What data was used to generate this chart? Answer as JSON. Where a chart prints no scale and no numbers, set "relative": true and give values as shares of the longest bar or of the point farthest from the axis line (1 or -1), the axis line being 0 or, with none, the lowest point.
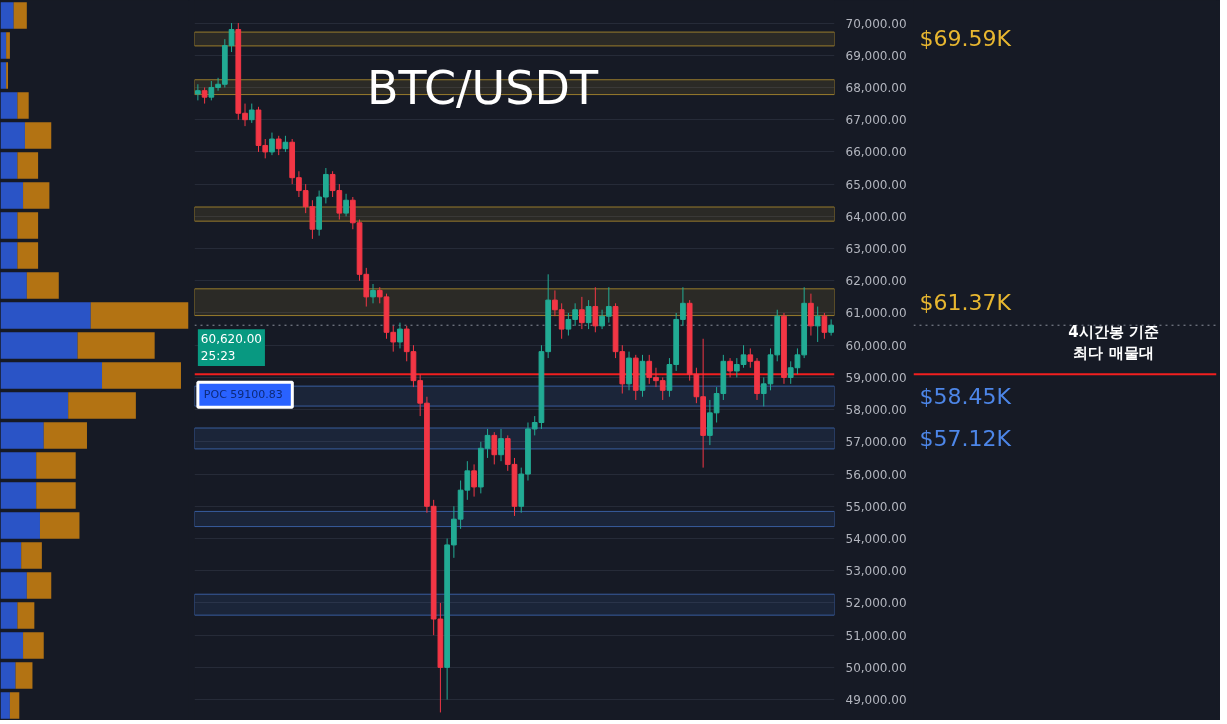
{
  "chart_data": [
    {
      "type": "candlestick",
      "title": "BTC/USDT",
      "categories": [
        null,
        null,
        null,
        null,
        null,
        null,
        null,
        null,
        null,
        null,
        null,
        null,
        null,
        null,
        null,
        null,
        null,
        null,
        null,
        null,
        null,
        null,
        null,
        null,
        null,
        null,
        null,
        null,
        null,
        null,
        null,
        null,
        null,
        null,
        null,
        null,
        null,
        null,
        null,
        null,
        null,
        null,
        null,
        null,
        null,
        null,
        null,
        null,
        null,
        null,
        null,
        null,
        null,
        null,
        null,
        null,
        null,
        null,
        null,
        null,
        null,
        null,
        null,
        null,
        null,
        null,
        null,
        null,
        null,
        null,
        null,
        null,
        null,
        null,
        null,
        null,
        null,
        null,
        null,
        null,
        null,
        null,
        null,
        null,
        null,
        null,
        null,
        null,
        null,
        null,
        null,
        null,
        null,
        null,
        null
      ],
      "ohlc": [
        [
          67800,
          68100,
          67600,
          67900
        ],
        [
          67900,
          68000,
          67500,
          67700
        ],
        [
          67700,
          68200,
          67600,
          68000
        ],
        [
          68000,
          68300,
          67900,
          68100
        ],
        [
          68100,
          69500,
          68000,
          69300
        ],
        [
          69300,
          70000,
          69100,
          69800
        ],
        [
          69800,
          70000,
          67000,
          67200
        ],
        [
          67200,
          67500,
          66800,
          67000
        ],
        [
          67000,
          67500,
          66900,
          67300
        ],
        [
          67300,
          67400,
          66000,
          66200
        ],
        [
          66200,
          66400,
          65800,
          66000
        ],
        [
          66000,
          66600,
          65900,
          66400
        ],
        [
          66400,
          66500,
          65900,
          66100
        ],
        [
          66100,
          66500,
          66000,
          66300
        ],
        [
          66300,
          66400,
          65000,
          65200
        ],
        [
          65200,
          65400,
          64600,
          64800
        ],
        [
          64800,
          65000,
          64100,
          64300
        ],
        [
          64300,
          64500,
          63300,
          63600
        ],
        [
          63600,
          64800,
          63400,
          64600
        ],
        [
          64600,
          65500,
          64400,
          65300
        ],
        [
          65300,
          65400,
          64600,
          64800
        ],
        [
          64800,
          65000,
          63900,
          64100
        ],
        [
          64100,
          64700,
          64000,
          64500
        ],
        [
          64500,
          64600,
          63600,
          63800
        ],
        [
          63800,
          63900,
          62000,
          62200
        ],
        [
          62200,
          62400,
          61200,
          61500
        ],
        [
          61500,
          61900,
          61300,
          61700
        ],
        [
          61700,
          61800,
          61300,
          61500
        ],
        [
          61500,
          61600,
          60200,
          60400
        ],
        [
          60400,
          60600,
          59800,
          60100
        ],
        [
          60100,
          60700,
          59900,
          60500
        ],
        [
          60500,
          60600,
          59500,
          59800
        ],
        [
          59800,
          60000,
          58700,
          58900
        ],
        [
          58900,
          59100,
          57800,
          58200
        ],
        [
          58200,
          58400,
          54800,
          55000
        ],
        [
          55000,
          55200,
          51000,
          51500
        ],
        [
          51500,
          52000,
          48600,
          50000
        ],
        [
          50000,
          54000,
          49000,
          53800
        ],
        [
          53800,
          55000,
          53400,
          54600
        ],
        [
          54600,
          55800,
          54300,
          55500
        ],
        [
          55500,
          56400,
          55200,
          56100
        ],
        [
          56100,
          56300,
          55300,
          55600
        ],
        [
          55600,
          57000,
          55400,
          56800
        ],
        [
          56800,
          57400,
          56500,
          57200
        ],
        [
          57200,
          57300,
          56300,
          56600
        ],
        [
          56600,
          57400,
          56400,
          57100
        ],
        [
          57100,
          57200,
          56100,
          56300
        ],
        [
          56300,
          56500,
          54700,
          55000
        ],
        [
          55000,
          56200,
          54800,
          56000
        ],
        [
          56000,
          57600,
          55800,
          57400
        ],
        [
          57400,
          57800,
          57200,
          57600
        ],
        [
          57600,
          60000,
          57400,
          59800
        ],
        [
          59800,
          62200,
          59600,
          61400
        ],
        [
          61400,
          61700,
          60900,
          61100
        ],
        [
          61100,
          61300,
          60200,
          60500
        ],
        [
          60500,
          61000,
          60300,
          60800
        ],
        [
          60800,
          61300,
          60600,
          61100
        ],
        [
          61100,
          61500,
          60500,
          60700
        ],
        [
          60700,
          61400,
          60500,
          61200
        ],
        [
          61200,
          61800,
          60400,
          60600
        ],
        [
          60600,
          61100,
          60500,
          60900
        ],
        [
          60900,
          61800,
          60700,
          61200
        ],
        [
          61200,
          61300,
          59600,
          59800
        ],
        [
          59800,
          60000,
          58500,
          58800
        ],
        [
          58800,
          59800,
          58600,
          59600
        ],
        [
          59600,
          59700,
          58300,
          58600
        ],
        [
          58600,
          59700,
          58400,
          59500
        ],
        [
          59500,
          59700,
          58800,
          59000
        ],
        [
          59000,
          59300,
          58700,
          58900
        ],
        [
          58900,
          59000,
          58300,
          58600
        ],
        [
          58600,
          59600,
          58400,
          59400
        ],
        [
          59400,
          61000,
          59200,
          60800
        ],
        [
          60800,
          61800,
          60600,
          61300
        ],
        [
          61300,
          61400,
          58900,
          59100
        ],
        [
          59100,
          59300,
          58200,
          58400
        ],
        [
          58400,
          60200,
          56200,
          57200
        ],
        [
          57200,
          58300,
          56900,
          57900
        ],
        [
          57900,
          58700,
          57600,
          58500
        ],
        [
          58500,
          59700,
          58300,
          59500
        ],
        [
          59500,
          59600,
          59000,
          59200
        ],
        [
          59200,
          59600,
          59000,
          59400
        ],
        [
          59400,
          60000,
          59300,
          59700
        ],
        [
          59700,
          59900,
          59300,
          59500
        ],
        [
          59500,
          59600,
          58300,
          58500
        ],
        [
          58500,
          59000,
          58100,
          58800
        ],
        [
          58800,
          59900,
          58600,
          59700
        ],
        [
          59700,
          61100,
          59500,
          60900
        ],
        [
          60900,
          61000,
          58800,
          59000
        ],
        [
          59000,
          59500,
          58800,
          59300
        ],
        [
          59300,
          59900,
          59100,
          59700
        ],
        [
          59700,
          61800,
          59600,
          61300
        ],
        [
          61300,
          61600,
          60300,
          60600
        ],
        [
          60600,
          61200,
          60100,
          60900
        ],
        [
          60900,
          61000,
          60200,
          60400
        ],
        [
          60400,
          60800,
          60300,
          60620
        ]
      ],
      "ylim": [
        48350,
        70700
      ],
      "yticks": [
        {
          "value": 49000,
          "label": "49,000.00"
        },
        {
          "value": 50000,
          "label": "50,000.00"
        },
        {
          "value": 51000,
          "label": "51,000.00"
        },
        {
          "value": 52000,
          "label": "52,000.00"
        },
        {
          "value": 53000,
          "label": "53,000.00"
        },
        {
          "value": 54000,
          "label": "54,000.00"
        },
        {
          "value": 55000,
          "label": "55,000.00"
        },
        {
          "value": 56000,
          "label": "56,000.00"
        },
        {
          "value": 57000,
          "label": "57,000.00"
        },
        {
          "value": 58000,
          "label": "58,000.00"
        },
        {
          "value": 59000,
          "label": "59,000.00"
        },
        {
          "value": 60000,
          "label": "60,000.00"
        },
        {
          "value": 61000,
          "label": "61,000.00"
        },
        {
          "value": 62000,
          "label": "62,000.00"
        },
        {
          "value": 63000,
          "label": "63,000.00"
        },
        {
          "value": 64000,
          "label": "64,000.00"
        },
        {
          "value": 65000,
          "label": "65,000.00"
        },
        {
          "value": 66000,
          "label": "66,000.00"
        },
        {
          "value": 67000,
          "label": "67,000.00"
        },
        {
          "value": 68000,
          "label": "68,000.00"
        },
        {
          "value": 69000,
          "label": "69,000.00"
        },
        {
          "value": 70000,
          "label": "70,000.00"
        }
      ],
      "bands": [
        {
          "axis": "y",
          "from": 69290,
          "to": 69720,
          "label": "$69.59K",
          "color": "#e8b730"
        },
        {
          "axis": "y",
          "from": 67780,
          "to": 68240,
          "label": null,
          "color": "#e8b730"
        },
        {
          "axis": "y",
          "from": 63850,
          "to": 64290,
          "label": null,
          "color": "#e8b730"
        },
        {
          "axis": "y",
          "from": 60920,
          "to": 61750,
          "label": "$61.37K",
          "color": "#e8b730"
        },
        {
          "axis": "y",
          "from": 58110,
          "to": 58730,
          "label": "$58.45K",
          "color": "#4d86e8"
        },
        {
          "axis": "y",
          "from": 56780,
          "to": 57430,
          "label": "$57.12K",
          "color": "#4d86e8"
        },
        {
          "axis": "y",
          "from": 54370,
          "to": 54840,
          "label": null,
          "color": "#4d86e8"
        },
        {
          "axis": "y",
          "from": 51620,
          "to": 52270,
          "label": null,
          "color": "#4d86e8"
        }
      ],
      "ref_lines": [
        {
          "axis": "y",
          "value": 59100.83,
          "label": "POC  59100.83",
          "color": "#f21f1f",
          "line_style": "solid"
        },
        {
          "axis": "y",
          "value": 60620,
          "label": "60,620.00\n25:23",
          "color": "#8a8f9c",
          "line_style": "dotted"
        }
      ],
      "annotations": [
        "4시간봉 기준\n최다 매물대"
      ],
      "grid": "y",
      "tick_labels": "y"
    },
    {
      "type": "bar",
      "orientation": "horizontal",
      "stacked": true,
      "relative": true,
      "categories": [
        null,
        null,
        null,
        null,
        null,
        null,
        null,
        null,
        null,
        null,
        null,
        null,
        null,
        null,
        null,
        null,
        null,
        null,
        null,
        null,
        null,
        null,
        null,
        null
      ],
      "series": [
        {
          "color": "#2c5bd8",
          "values": [
            0.07,
            0.03,
            0.03,
            0.09,
            0.13,
            0.09,
            0.12,
            0.09,
            0.09,
            0.14,
            0.48,
            0.41,
            0.54,
            0.36,
            0.23,
            0.19,
            0.19,
            0.21,
            0.11,
            0.14,
            0.09,
            0.12,
            0.08,
            0.05
          ]
        },
        {
          "color": "#c47d12",
          "values": [
            0.07,
            0.02,
            0.01,
            0.06,
            0.14,
            0.11,
            0.14,
            0.11,
            0.11,
            0.17,
            0.52,
            0.41,
            0.42,
            0.36,
            0.23,
            0.21,
            0.21,
            0.21,
            0.11,
            0.13,
            0.09,
            0.11,
            0.09,
            0.05
          ]
        }
      ]
    }
  ]
}
